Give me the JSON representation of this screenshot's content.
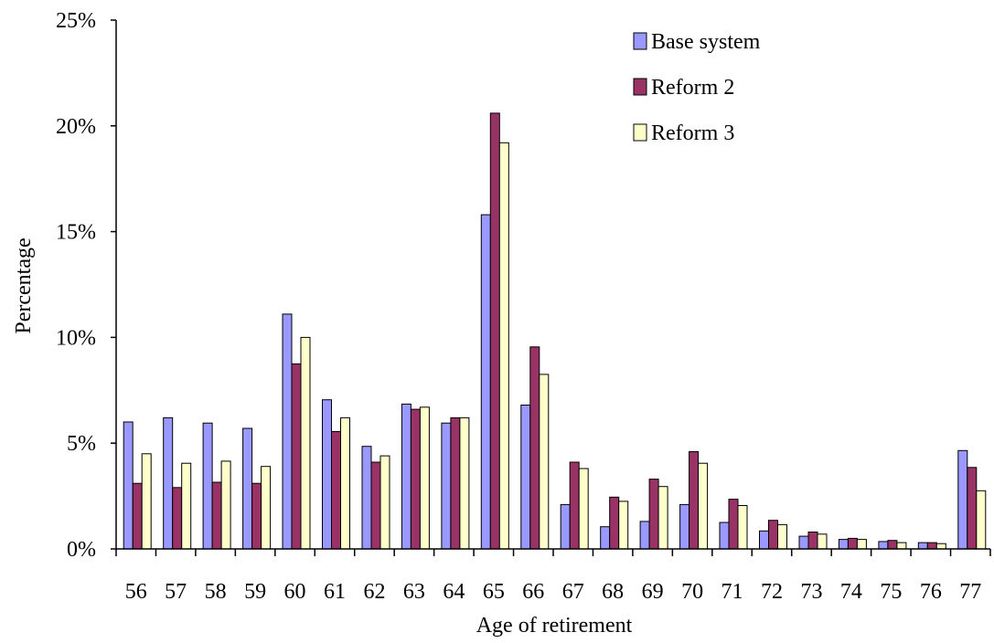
{
  "chart_data": {
    "type": "bar",
    "title": "",
    "xlabel": "Age of retirement",
    "ylabel": "Percentage",
    "ylim": [
      0,
      25
    ],
    "yticks": [
      "0%",
      "5%",
      "10%",
      "15%",
      "20%",
      "25%"
    ],
    "grid": false,
    "legend_position": "top-right",
    "categories": [
      "56",
      "57",
      "58",
      "59",
      "60",
      "61",
      "62",
      "63",
      "64",
      "65",
      "66",
      "67",
      "68",
      "69",
      "70",
      "71",
      "72",
      "73",
      "74",
      "75",
      "76",
      "77"
    ],
    "series": [
      {
        "name": "Base system",
        "color": "#9999ff",
        "values": [
          6.0,
          6.2,
          5.95,
          5.7,
          11.1,
          7.05,
          4.85,
          6.85,
          5.95,
          15.8,
          6.8,
          2.1,
          1.05,
          1.3,
          2.1,
          1.25,
          0.85,
          0.6,
          0.45,
          0.35,
          0.3,
          4.65
        ]
      },
      {
        "name": "Reform 2",
        "color": "#993366",
        "values": [
          3.1,
          2.9,
          3.15,
          3.1,
          8.75,
          5.55,
          4.1,
          6.6,
          6.2,
          20.6,
          9.55,
          4.1,
          2.45,
          3.3,
          4.6,
          2.35,
          1.35,
          0.8,
          0.5,
          0.4,
          0.3,
          3.85
        ]
      },
      {
        "name": "Reform 3",
        "color": "#ffffcc",
        "values": [
          4.5,
          4.05,
          4.15,
          3.9,
          10.0,
          6.2,
          4.4,
          6.7,
          6.2,
          19.2,
          8.25,
          3.8,
          2.25,
          2.95,
          4.05,
          2.05,
          1.15,
          0.7,
          0.45,
          0.3,
          0.25,
          2.75
        ]
      }
    ]
  }
}
